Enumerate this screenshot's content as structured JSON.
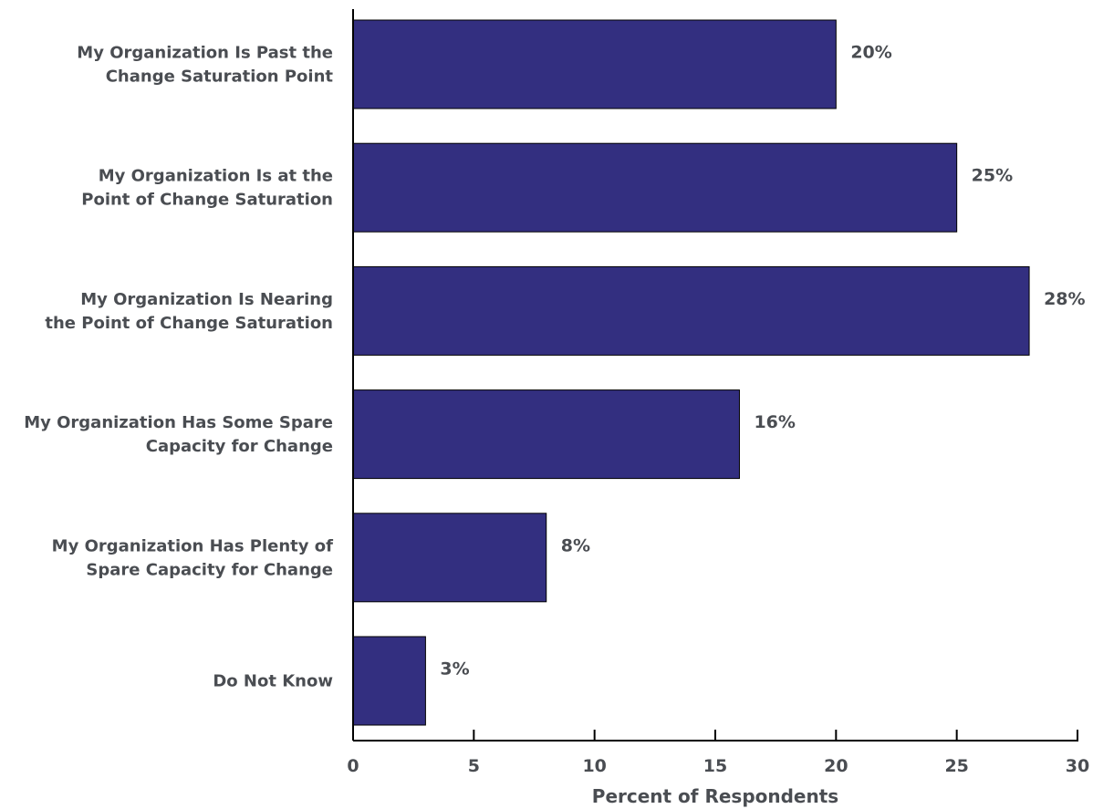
{
  "chart_data": {
    "type": "bar",
    "orientation": "horizontal",
    "categories": [
      [
        "My Organization Is Past the",
        "Change Saturation Point"
      ],
      [
        "My Organization Is at the",
        "Point of Change Saturation"
      ],
      [
        "My Organization Is Nearing",
        "the Point of Change Saturation"
      ],
      [
        "My Organization Has Some Spare",
        "Capacity for Change"
      ],
      [
        "My Organization Has Plenty of",
        "Spare Capacity for Change"
      ],
      [
        "Do Not Know"
      ]
    ],
    "values": [
      20,
      25,
      28,
      16,
      8,
      3
    ],
    "data_labels": [
      "20%",
      "25%",
      "28%",
      "16%",
      "8%",
      "3%"
    ],
    "xlabel": "Percent of Respondents",
    "ylabel": "",
    "xlim": [
      0,
      30
    ],
    "xticks": [
      "0",
      "5",
      "10",
      "15",
      "20",
      "25",
      "30"
    ],
    "grid": false,
    "bar_color": "#332f80"
  }
}
